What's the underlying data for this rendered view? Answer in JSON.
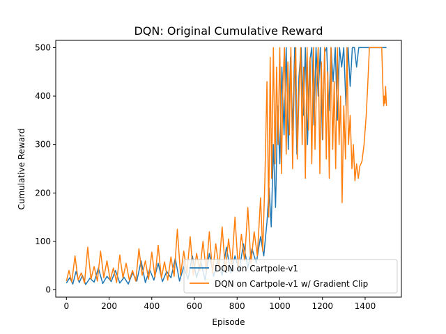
{
  "chart_data": {
    "type": "line",
    "title": "DQN: Original Cumulative Reward",
    "xlabel": "Episode",
    "ylabel": "Cumulative Reward",
    "xlim": [
      -50,
      1570
    ],
    "ylim": [
      -15,
      515
    ],
    "xticks": [
      0,
      200,
      400,
      600,
      800,
      1000,
      1200,
      1400
    ],
    "yticks": [
      0,
      100,
      200,
      300,
      400,
      500
    ],
    "grid": false,
    "legend_position": "lower right",
    "series": [
      {
        "name": "DQN on Cartpole-v1",
        "color": "#1f77b4",
        "points": [
          [
            0,
            14
          ],
          [
            15,
            25
          ],
          [
            30,
            12
          ],
          [
            45,
            38
          ],
          [
            60,
            15
          ],
          [
            75,
            30
          ],
          [
            90,
            11
          ],
          [
            110,
            24
          ],
          [
            130,
            16
          ],
          [
            150,
            45
          ],
          [
            170,
            13
          ],
          [
            190,
            28
          ],
          [
            210,
            17
          ],
          [
            230,
            40
          ],
          [
            250,
            14
          ],
          [
            270,
            26
          ],
          [
            290,
            12
          ],
          [
            310,
            35
          ],
          [
            330,
            18
          ],
          [
            350,
            60
          ],
          [
            370,
            15
          ],
          [
            390,
            42
          ],
          [
            410,
            20
          ],
          [
            430,
            55
          ],
          [
            450,
            17
          ],
          [
            470,
            38
          ],
          [
            490,
            25
          ],
          [
            510,
            65
          ],
          [
            530,
            18
          ],
          [
            550,
            48
          ],
          [
            570,
            22
          ],
          [
            590,
            70
          ],
          [
            610,
            25
          ],
          [
            630,
            58
          ],
          [
            650,
            20
          ],
          [
            670,
            75
          ],
          [
            690,
            28
          ],
          [
            710,
            62
          ],
          [
            730,
            30
          ],
          [
            750,
            88
          ],
          [
            770,
            35
          ],
          [
            790,
            70
          ],
          [
            810,
            40
          ],
          [
            830,
            95
          ],
          [
            850,
            45
          ],
          [
            870,
            85
          ],
          [
            890,
            55
          ],
          [
            910,
            110
          ],
          [
            925,
            70
          ],
          [
            940,
            140
          ],
          [
            950,
            210
          ],
          [
            960,
            130
          ],
          [
            970,
            300
          ],
          [
            980,
            170
          ],
          [
            990,
            380
          ],
          [
            1000,
            260
          ],
          [
            1010,
            460
          ],
          [
            1020,
            320
          ],
          [
            1030,
            500
          ],
          [
            1040,
            290
          ],
          [
            1050,
            480
          ],
          [
            1060,
            330
          ],
          [
            1070,
            500
          ],
          [
            1080,
            280
          ],
          [
            1090,
            440
          ],
          [
            1100,
            500
          ],
          [
            1110,
            360
          ],
          [
            1120,
            500
          ],
          [
            1130,
            300
          ],
          [
            1140,
            470
          ],
          [
            1150,
            500
          ],
          [
            1160,
            340
          ],
          [
            1170,
            500
          ],
          [
            1180,
            400
          ],
          [
            1190,
            500
          ],
          [
            1200,
            310
          ],
          [
            1210,
            490
          ],
          [
            1220,
            500
          ],
          [
            1230,
            370
          ],
          [
            1240,
            500
          ],
          [
            1250,
            430
          ],
          [
            1260,
            500
          ],
          [
            1270,
            350
          ],
          [
            1280,
            500
          ],
          [
            1290,
            460
          ],
          [
            1300,
            500
          ],
          [
            1310,
            380
          ],
          [
            1320,
            500
          ],
          [
            1330,
            420
          ],
          [
            1340,
            500
          ],
          [
            1350,
            500
          ],
          [
            1360,
            460
          ],
          [
            1370,
            500
          ],
          [
            1380,
            500
          ],
          [
            1500,
            500
          ]
        ]
      },
      {
        "name": "DQN on Cartpole-v1 w/ Gradient Clip",
        "color": "#ff7f0e",
        "points": [
          [
            0,
            18
          ],
          [
            12,
            40
          ],
          [
            25,
            16
          ],
          [
            40,
            70
          ],
          [
            55,
            20
          ],
          [
            70,
            35
          ],
          [
            85,
            14
          ],
          [
            100,
            88
          ],
          [
            115,
            22
          ],
          [
            130,
            48
          ],
          [
            145,
            18
          ],
          [
            160,
            80
          ],
          [
            175,
            25
          ],
          [
            190,
            60
          ],
          [
            205,
            20
          ],
          [
            220,
            45
          ],
          [
            235,
            15
          ],
          [
            250,
            72
          ],
          [
            265,
            25
          ],
          [
            280,
            55
          ],
          [
            295,
            20
          ],
          [
            310,
            40
          ],
          [
            325,
            18
          ],
          [
            340,
            85
          ],
          [
            355,
            30
          ],
          [
            370,
            60
          ],
          [
            385,
            22
          ],
          [
            400,
            78
          ],
          [
            415,
            26
          ],
          [
            430,
            92
          ],
          [
            445,
            24
          ],
          [
            460,
            58
          ],
          [
            475,
            20
          ],
          [
            490,
            68
          ],
          [
            505,
            28
          ],
          [
            520,
            125
          ],
          [
            535,
            30
          ],
          [
            550,
            80
          ],
          [
            565,
            35
          ],
          [
            580,
            110
          ],
          [
            595,
            30
          ],
          [
            610,
            75
          ],
          [
            625,
            40
          ],
          [
            640,
            100
          ],
          [
            655,
            38
          ],
          [
            670,
            120
          ],
          [
            685,
            35
          ],
          [
            700,
            95
          ],
          [
            715,
            45
          ],
          [
            730,
            130
          ],
          [
            745,
            40
          ],
          [
            760,
            105
          ],
          [
            775,
            50
          ],
          [
            790,
            150
          ],
          [
            805,
            45
          ],
          [
            820,
            115
          ],
          [
            835,
            60
          ],
          [
            850,
            170
          ],
          [
            865,
            55
          ],
          [
            880,
            120
          ],
          [
            895,
            70
          ],
          [
            910,
            190
          ],
          [
            920,
            80
          ],
          [
            930,
            220
          ],
          [
            940,
            430
          ],
          [
            948,
            150
          ],
          [
            955,
            480
          ],
          [
            962,
            230
          ],
          [
            970,
            500
          ],
          [
            978,
            260
          ],
          [
            985,
            460
          ],
          [
            992,
            300
          ],
          [
            1000,
            500
          ],
          [
            1008,
            240
          ],
          [
            1015,
            430
          ],
          [
            1022,
            500
          ],
          [
            1030,
            280
          ],
          [
            1038,
            470
          ],
          [
            1045,
            320
          ],
          [
            1052,
            500
          ],
          [
            1060,
            250
          ],
          [
            1068,
            440
          ],
          [
            1075,
            500
          ],
          [
            1082,
            270
          ],
          [
            1090,
            400
          ],
          [
            1098,
            500
          ],
          [
            1105,
            300
          ],
          [
            1112,
            460
          ],
          [
            1120,
            230
          ],
          [
            1128,
            500
          ],
          [
            1135,
            330
          ],
          [
            1142,
            480
          ],
          [
            1150,
            260
          ],
          [
            1158,
            500
          ],
          [
            1165,
            290
          ],
          [
            1172,
            420
          ],
          [
            1180,
            500
          ],
          [
            1188,
            240
          ],
          [
            1195,
            470
          ],
          [
            1202,
            310
          ],
          [
            1210,
            500
          ],
          [
            1218,
            270
          ],
          [
            1225,
            450
          ],
          [
            1232,
            230
          ],
          [
            1240,
            500
          ],
          [
            1248,
            290
          ],
          [
            1255,
            430
          ],
          [
            1262,
            250
          ],
          [
            1270,
            500
          ],
          [
            1278,
            300
          ],
          [
            1285,
            400
          ],
          [
            1292,
            180
          ],
          [
            1300,
            380
          ],
          [
            1308,
            270
          ],
          [
            1315,
            500
          ],
          [
            1322,
            300
          ],
          [
            1330,
            360
          ],
          [
            1338,
            250
          ],
          [
            1345,
            300
          ],
          [
            1352,
            225
          ],
          [
            1360,
            260
          ],
          [
            1368,
            230
          ],
          [
            1375,
            255
          ],
          [
            1385,
            265
          ],
          [
            1395,
            300
          ],
          [
            1405,
            360
          ],
          [
            1412,
            420
          ],
          [
            1420,
            500
          ],
          [
            1430,
            500
          ],
          [
            1440,
            500
          ],
          [
            1450,
            500
          ],
          [
            1460,
            500
          ],
          [
            1470,
            500
          ],
          [
            1478,
            500
          ],
          [
            1483,
            420
          ],
          [
            1487,
            380
          ],
          [
            1490,
            400
          ],
          [
            1493,
            385
          ],
          [
            1496,
            420
          ],
          [
            1500,
            380
          ]
        ]
      }
    ]
  }
}
